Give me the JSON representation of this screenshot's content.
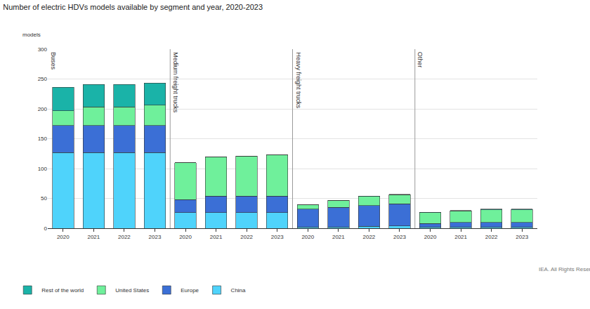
{
  "chart_data": {
    "type": "bar",
    "title": "Number of electric HDVs models available by segment and year, 2020-2023",
    "y_label": "models",
    "source": "IEA. All Rights Reserved",
    "groups": [
      {
        "name": "Buses",
        "categories": [
          "2020",
          "2021",
          "2022",
          "2023"
        ]
      },
      {
        "name": "Medium freight trucks",
        "categories": [
          "2020",
          "2021",
          "2022",
          "2023"
        ]
      },
      {
        "name": "Heavy freight trucks",
        "categories": [
          "2020",
          "2021",
          "2022",
          "2023"
        ]
      },
      {
        "name": "Other",
        "categories": [
          "2020",
          "2021",
          "2022",
          "2023"
        ]
      }
    ],
    "series": [
      {
        "name": "China",
        "color": "#4fd3fb",
        "values": [
          127,
          127,
          127,
          127,
          26,
          26,
          26,
          26,
          2,
          2,
          3,
          4,
          2,
          2,
          2,
          2
        ]
      },
      {
        "name": "Europe",
        "color": "#3b6fd6",
        "values": [
          45,
          45,
          45,
          45,
          22,
          28,
          28,
          28,
          30,
          33,
          35,
          37,
          6,
          8,
          8,
          8
        ]
      },
      {
        "name": "United States",
        "color": "#6ff09b",
        "values": [
          25,
          31,
          31,
          34,
          62,
          66,
          67,
          69,
          7,
          12,
          15,
          15,
          18,
          19,
          21,
          21
        ]
      },
      {
        "name": "Rest of the world",
        "color": "#1ab3a8",
        "values": [
          39,
          38,
          38,
          37,
          0,
          0,
          0,
          0,
          0,
          0,
          1,
          1,
          1,
          1,
          1,
          1
        ]
      }
    ],
    "ylim": [
      0,
      300
    ],
    "yticks": [
      0,
      50,
      100,
      150,
      200,
      250,
      300
    ],
    "stacked": true,
    "grid": true,
    "legend": "bottom-left"
  }
}
